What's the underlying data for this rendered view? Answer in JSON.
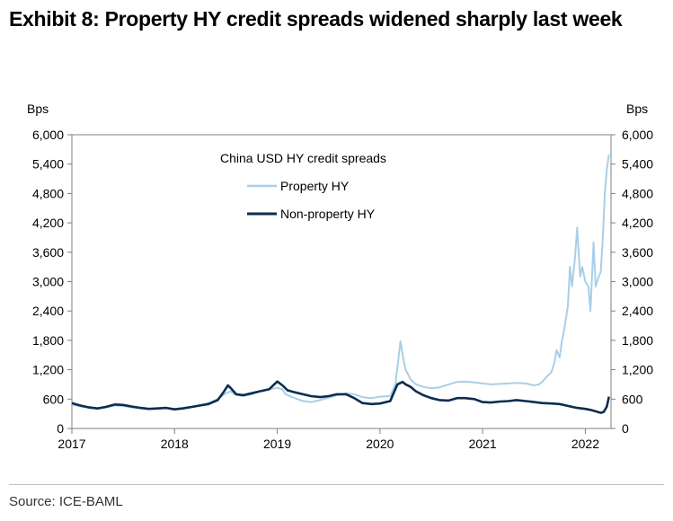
{
  "title": "Exhibit 8: Property HY credit spreads widened sharply last week",
  "source": "Source: ICE-BAML",
  "colors": {
    "property": "#a8cfe8",
    "nonproperty": "#0b2d4f",
    "axis": "#7f7f7f",
    "text": "#000000"
  },
  "chart_data": {
    "type": "line",
    "title": "China USD HY credit spreads",
    "ylabel_left": "Bps",
    "ylabel_right": "Bps",
    "xlim": [
      2017.0,
      2022.25
    ],
    "ylim": [
      0,
      6000
    ],
    "yticks": [
      0,
      600,
      1200,
      1800,
      2400,
      3000,
      3600,
      4200,
      4800,
      5400,
      6000
    ],
    "ytick_labels_left": [
      "0",
      "600",
      "1,200",
      "1,800",
      "2,400",
      "3,000",
      "3,600",
      "4,200",
      "4,800",
      "5,400",
      "6,000"
    ],
    "ytick_labels_right": [
      "0",
      "600",
      "1,200",
      "1,800",
      "2,400",
      "3,000",
      "3,600",
      "4,200",
      "4,800",
      "5,400",
      "6,000"
    ],
    "xticks": [
      2017,
      2018,
      2019,
      2020,
      2021,
      2022
    ],
    "xtick_labels": [
      "2017",
      "2018",
      "2019",
      "2020",
      "2021",
      "2022"
    ],
    "legend": [
      "Property HY",
      "Non-property HY"
    ],
    "series": [
      {
        "name": "Property HY",
        "x": [
          2017.0,
          2017.08,
          2017.17,
          2017.25,
          2017.33,
          2017.42,
          2017.5,
          2017.58,
          2017.67,
          2017.75,
          2017.83,
          2017.92,
          2018.0,
          2018.08,
          2018.17,
          2018.25,
          2018.33,
          2018.42,
          2018.5,
          2018.55,
          2018.58,
          2018.67,
          2018.75,
          2018.83,
          2018.92,
          2019.0,
          2019.05,
          2019.08,
          2019.17,
          2019.25,
          2019.33,
          2019.42,
          2019.5,
          2019.58,
          2019.67,
          2019.75,
          2019.83,
          2019.92,
          2020.0,
          2020.1,
          2020.15,
          2020.2,
          2020.23,
          2020.25,
          2020.3,
          2020.35,
          2020.42,
          2020.5,
          2020.58,
          2020.67,
          2020.75,
          2020.83,
          2020.92,
          2021.0,
          2021.08,
          2021.17,
          2021.25,
          2021.33,
          2021.42,
          2021.5,
          2021.55,
          2021.58,
          2021.62,
          2021.67,
          2021.7,
          2021.72,
          2021.75,
          2021.77,
          2021.8,
          2021.83,
          2021.85,
          2021.87,
          2021.9,
          2021.92,
          2021.95,
          2021.97,
          2022.0,
          2022.03,
          2022.05,
          2022.08,
          2022.1,
          2022.13,
          2022.15,
          2022.17,
          2022.19,
          2022.21,
          2022.23
        ],
        "values": [
          490,
          450,
          420,
          410,
          430,
          470,
          460,
          430,
          410,
          400,
          410,
          420,
          400,
          420,
          450,
          480,
          520,
          600,
          720,
          760,
          700,
          660,
          700,
          760,
          800,
          830,
          800,
          700,
          620,
          560,
          540,
          580,
          630,
          680,
          720,
          700,
          640,
          620,
          650,
          660,
          900,
          1780,
          1400,
          1200,
          1000,
          900,
          850,
          820,
          840,
          900,
          950,
          960,
          940,
          920,
          900,
          910,
          920,
          930,
          920,
          880,
          900,
          950,
          1050,
          1150,
          1350,
          1600,
          1450,
          1750,
          2100,
          2500,
          3300,
          2900,
          3500,
          4100,
          3100,
          3300,
          3000,
          2900,
          2400,
          3800,
          2900,
          3100,
          3200,
          3900,
          4800,
          5300,
          5600
        ]
      },
      {
        "name": "Non-property HY",
        "x": [
          2017.0,
          2017.08,
          2017.17,
          2017.25,
          2017.33,
          2017.42,
          2017.5,
          2017.58,
          2017.67,
          2017.75,
          2017.83,
          2017.92,
          2018.0,
          2018.08,
          2018.17,
          2018.25,
          2018.33,
          2018.42,
          2018.48,
          2018.52,
          2018.55,
          2018.6,
          2018.67,
          2018.75,
          2018.83,
          2018.92,
          2019.0,
          2019.05,
          2019.1,
          2019.17,
          2019.25,
          2019.33,
          2019.42,
          2019.5,
          2019.58,
          2019.67,
          2019.75,
          2019.83,
          2019.92,
          2020.0,
          2020.1,
          2020.17,
          2020.22,
          2020.25,
          2020.3,
          2020.35,
          2020.42,
          2020.5,
          2020.58,
          2020.67,
          2020.75,
          2020.83,
          2020.92,
          2021.0,
          2021.08,
          2021.17,
          2021.25,
          2021.33,
          2021.42,
          2021.5,
          2021.58,
          2021.67,
          2021.75,
          2021.83,
          2021.92,
          2022.0,
          2022.05,
          2022.1,
          2022.15,
          2022.18,
          2022.21,
          2022.23
        ],
        "values": [
          520,
          470,
          430,
          410,
          440,
          490,
          480,
          450,
          420,
          400,
          410,
          420,
          390,
          410,
          440,
          470,
          500,
          580,
          750,
          880,
          820,
          700,
          680,
          720,
          760,
          800,
          960,
          880,
          780,
          740,
          700,
          660,
          640,
          660,
          700,
          700,
          620,
          520,
          500,
          510,
          560,
          900,
          950,
          900,
          850,
          760,
          680,
          620,
          580,
          570,
          620,
          620,
          600,
          540,
          530,
          550,
          560,
          580,
          560,
          540,
          520,
          510,
          500,
          460,
          420,
          400,
          380,
          350,
          320,
          340,
          450,
          650
        ]
      }
    ]
  }
}
